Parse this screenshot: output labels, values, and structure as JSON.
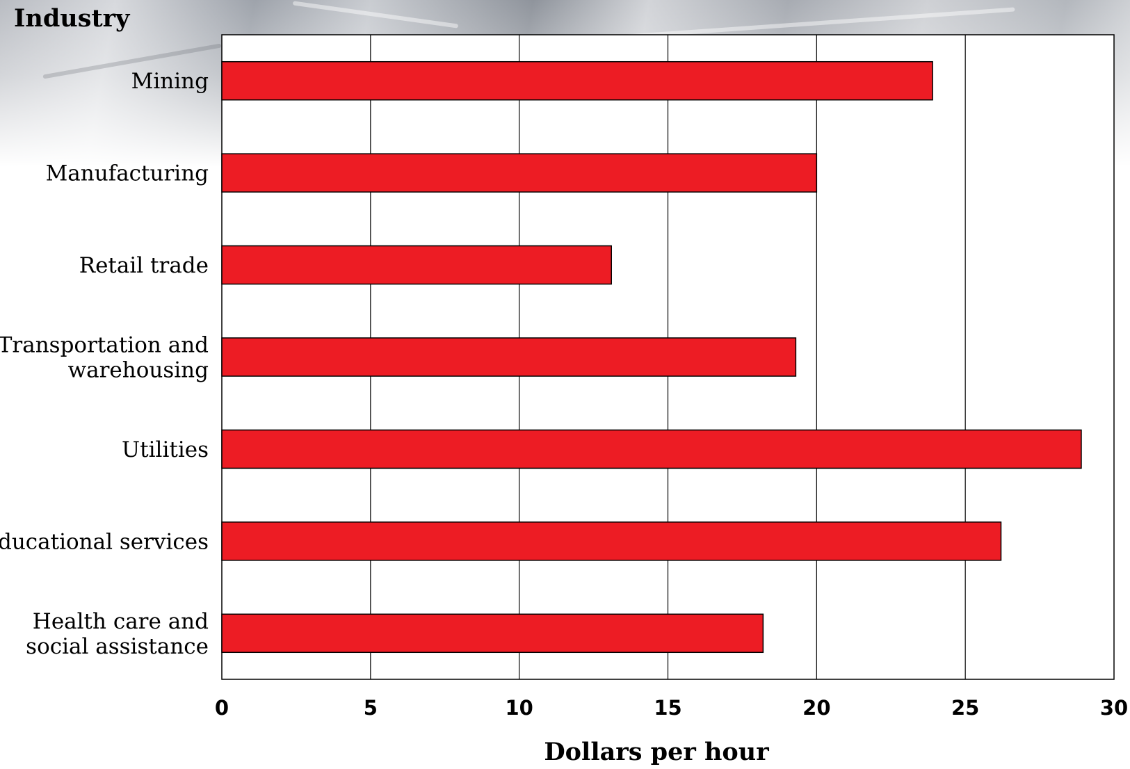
{
  "chart_data": {
    "type": "bar",
    "orientation": "horizontal",
    "yaxis_title": "Industry",
    "xlabel": "Dollars per hour",
    "categories": [
      [
        "Mining"
      ],
      [
        "Manufacturing"
      ],
      [
        "Retail trade"
      ],
      [
        "Transportation and",
        "warehousing"
      ],
      [
        "Utilities"
      ],
      [
        "Educational services"
      ],
      [
        "Health care and",
        "social assistance"
      ]
    ],
    "values": [
      23.9,
      20.0,
      13.1,
      19.3,
      28.9,
      26.2,
      18.2
    ],
    "xlim": [
      0,
      30
    ],
    "xticks": [
      0,
      5,
      10,
      15,
      20,
      25,
      30
    ],
    "grid": "vertical",
    "bar_color": "#ed1c24",
    "legend": "none"
  }
}
